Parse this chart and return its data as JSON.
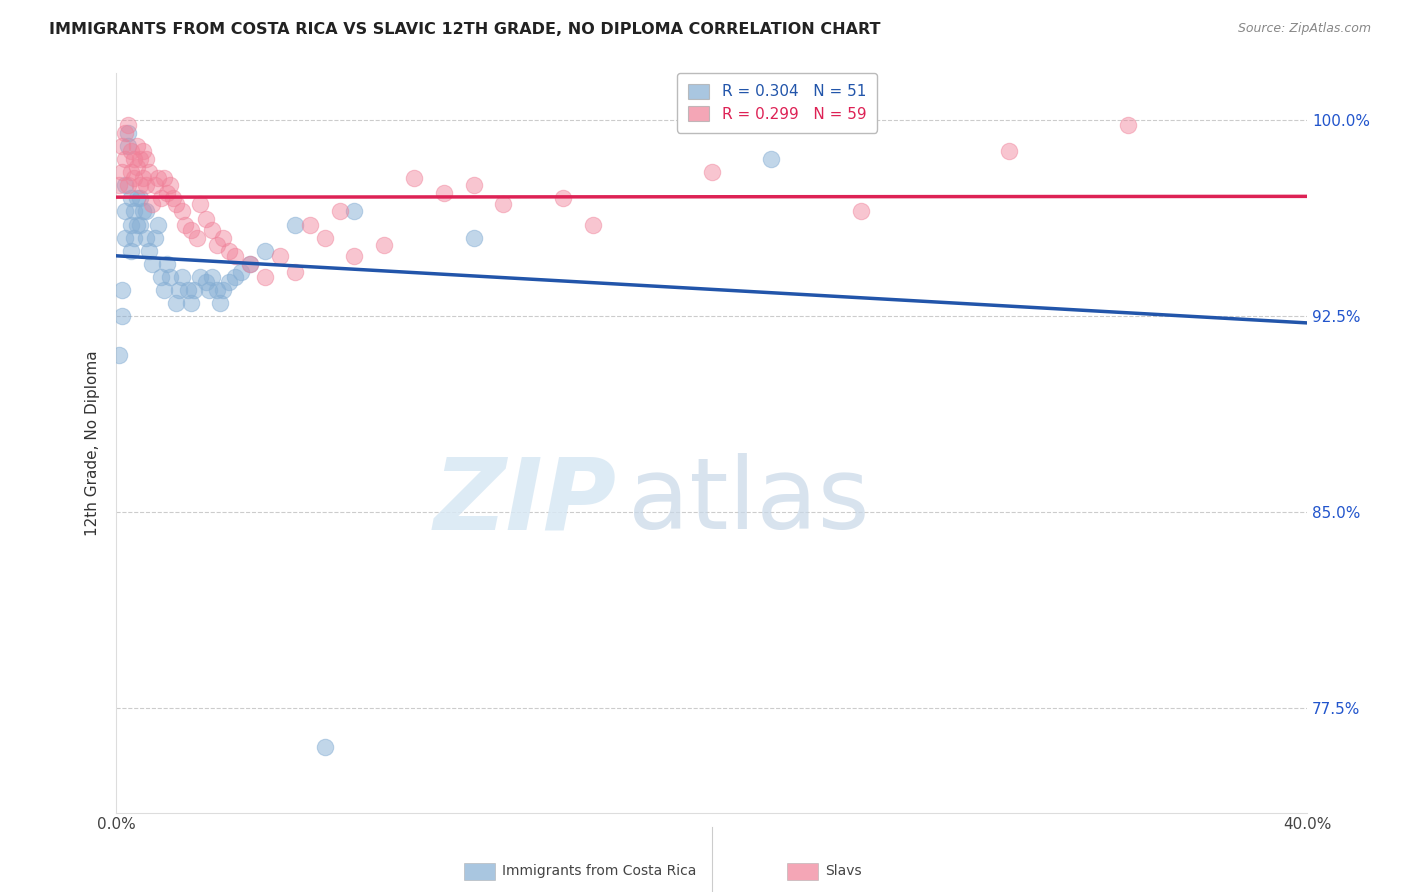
{
  "title": "IMMIGRANTS FROM COSTA RICA VS SLAVIC 12TH GRADE, NO DIPLOMA CORRELATION CHART",
  "source": "Source: ZipAtlas.com",
  "ylabel": "12th Grade, No Diploma",
  "x_min": 0.0,
  "x_max": 0.4,
  "y_min": 0.735,
  "y_max": 1.018,
  "x_ticks": [
    0.0,
    0.05,
    0.1,
    0.15,
    0.2,
    0.25,
    0.3,
    0.35,
    0.4
  ],
  "x_tick_labels": [
    "0.0%",
    "",
    "",
    "",
    "",
    "",
    "",
    "",
    "40.0%"
  ],
  "y_ticks": [
    0.775,
    0.85,
    0.925,
    1.0
  ],
  "y_tick_labels": [
    "77.5%",
    "85.0%",
    "92.5%",
    "100.0%"
  ],
  "blue_color": "#85aed4",
  "pink_color": "#f08098",
  "blue_line_color": "#2255aa",
  "pink_line_color": "#dd2255",
  "R_blue": 0.304,
  "N_blue": 51,
  "R_pink": 0.299,
  "N_pink": 59,
  "legend_blue": "Immigrants from Costa Rica",
  "legend_pink": "Slavs",
  "watermark_zip": "ZIP",
  "watermark_atlas": "atlas",
  "blue_x": [
    0.001,
    0.002,
    0.002,
    0.003,
    0.003,
    0.003,
    0.004,
    0.004,
    0.005,
    0.005,
    0.005,
    0.006,
    0.006,
    0.007,
    0.007,
    0.008,
    0.008,
    0.009,
    0.01,
    0.01,
    0.011,
    0.012,
    0.013,
    0.014,
    0.015,
    0.016,
    0.017,
    0.018,
    0.02,
    0.021,
    0.022,
    0.024,
    0.025,
    0.026,
    0.028,
    0.03,
    0.031,
    0.032,
    0.034,
    0.035,
    0.036,
    0.038,
    0.04,
    0.042,
    0.045,
    0.05,
    0.06,
    0.08,
    0.12,
    0.22,
    0.07
  ],
  "blue_y": [
    0.91,
    0.925,
    0.935,
    0.955,
    0.965,
    0.975,
    0.99,
    0.995,
    0.95,
    0.96,
    0.97,
    0.955,
    0.965,
    0.96,
    0.97,
    0.96,
    0.97,
    0.965,
    0.955,
    0.965,
    0.95,
    0.945,
    0.955,
    0.96,
    0.94,
    0.935,
    0.945,
    0.94,
    0.93,
    0.935,
    0.94,
    0.935,
    0.93,
    0.935,
    0.94,
    0.938,
    0.935,
    0.94,
    0.935,
    0.93,
    0.935,
    0.938,
    0.94,
    0.942,
    0.945,
    0.95,
    0.96,
    0.965,
    0.955,
    0.985,
    0.76
  ],
  "pink_x": [
    0.001,
    0.002,
    0.002,
    0.003,
    0.003,
    0.004,
    0.004,
    0.005,
    0.005,
    0.006,
    0.006,
    0.007,
    0.007,
    0.008,
    0.008,
    0.009,
    0.009,
    0.01,
    0.01,
    0.011,
    0.012,
    0.013,
    0.014,
    0.015,
    0.016,
    0.017,
    0.018,
    0.019,
    0.02,
    0.022,
    0.023,
    0.025,
    0.027,
    0.028,
    0.03,
    0.032,
    0.034,
    0.036,
    0.038,
    0.04,
    0.045,
    0.05,
    0.055,
    0.06,
    0.065,
    0.07,
    0.08,
    0.09,
    0.1,
    0.12,
    0.15,
    0.2,
    0.25,
    0.3,
    0.34,
    0.13,
    0.11,
    0.075,
    0.16
  ],
  "pink_y": [
    0.975,
    0.98,
    0.99,
    0.985,
    0.995,
    0.998,
    0.975,
    0.988,
    0.98,
    0.985,
    0.978,
    0.99,
    0.982,
    0.975,
    0.985,
    0.988,
    0.978,
    0.985,
    0.975,
    0.98,
    0.968,
    0.975,
    0.978,
    0.97,
    0.978,
    0.972,
    0.975,
    0.97,
    0.968,
    0.965,
    0.96,
    0.958,
    0.955,
    0.968,
    0.962,
    0.958,
    0.952,
    0.955,
    0.95,
    0.948,
    0.945,
    0.94,
    0.948,
    0.942,
    0.96,
    0.955,
    0.948,
    0.952,
    0.978,
    0.975,
    0.97,
    0.98,
    0.965,
    0.988,
    0.998,
    0.968,
    0.972,
    0.965,
    0.96
  ]
}
